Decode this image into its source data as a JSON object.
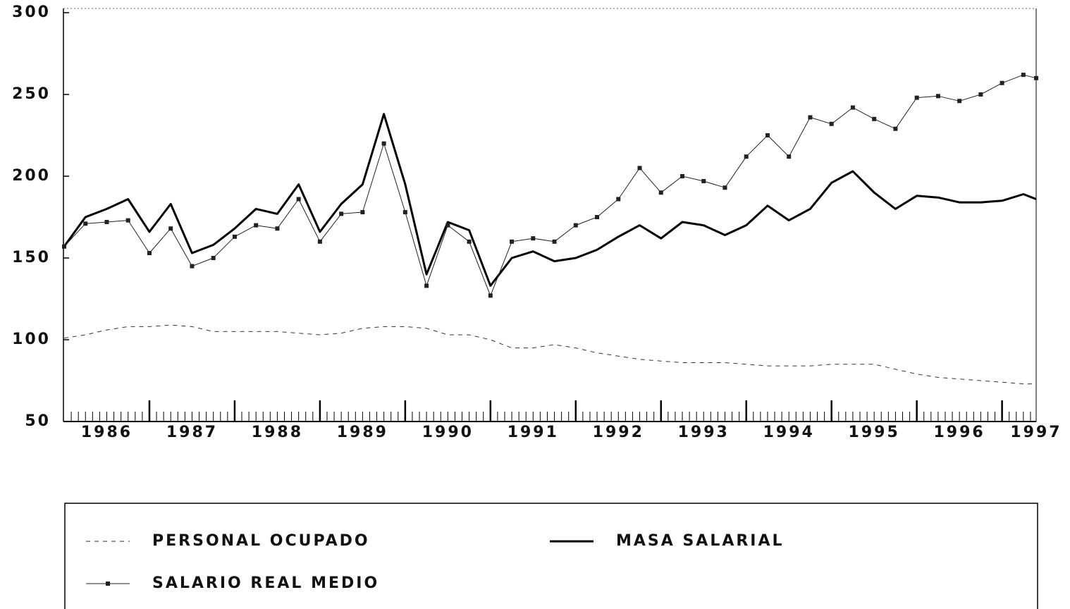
{
  "chart_data": {
    "type": "line",
    "xlim": [
      1986,
      1997.4
    ],
    "xticks": [
      {
        "value": 1986.5,
        "label": "1986"
      },
      {
        "value": 1987.5,
        "label": "1987"
      },
      {
        "value": 1988.5,
        "label": "1988"
      },
      {
        "value": 1989.5,
        "label": "1989"
      },
      {
        "value": 1990.5,
        "label": "1990"
      },
      {
        "value": 1991.5,
        "label": "1991"
      },
      {
        "value": 1992.5,
        "label": "1992"
      },
      {
        "value": 1993.5,
        "label": "1993"
      },
      {
        "value": 1994.5,
        "label": "1994"
      },
      {
        "value": 1995.5,
        "label": "1995"
      },
      {
        "value": 1996.5,
        "label": "1996"
      },
      {
        "value": 1997.4,
        "label": "1997"
      }
    ],
    "year_ticks": [
      1987,
      1988,
      1989,
      1990,
      1991,
      1992,
      1993,
      1994,
      1995,
      1996,
      1997
    ],
    "ylim": [
      50,
      300
    ],
    "yticks": [
      50,
      100,
      150,
      200,
      250,
      300
    ],
    "legend": "bottom",
    "x": [
      1986,
      1986.25,
      1986.5,
      1986.75,
      1987,
      1987.25,
      1987.5,
      1987.75,
      1988,
      1988.25,
      1988.5,
      1988.75,
      1989,
      1989.25,
      1989.5,
      1989.75,
      1990,
      1990.25,
      1990.5,
      1990.75,
      1991,
      1991.25,
      1991.5,
      1991.75,
      1992,
      1992.25,
      1992.5,
      1992.75,
      1993,
      1993.25,
      1993.5,
      1993.75,
      1994,
      1994.25,
      1994.5,
      1994.75,
      1995,
      1995.25,
      1995.5,
      1995.75,
      1996,
      1996.25,
      1996.5,
      1996.75,
      1997,
      1997.25,
      1997.4
    ],
    "series": [
      {
        "name": "PERSONAL OCUPADO",
        "color": "#333333",
        "style": "dashed",
        "width": 1,
        "values": [
          101,
          103,
          106,
          108,
          108,
          109,
          108,
          105,
          105,
          105,
          105,
          104,
          103,
          104,
          107,
          108,
          108,
          107,
          103,
          103,
          100,
          95,
          95,
          97,
          95,
          92,
          90,
          88,
          87,
          86,
          86,
          86,
          85,
          84,
          84,
          84,
          85,
          85,
          85,
          82,
          79,
          77,
          76,
          75,
          74,
          73,
          73
        ]
      },
      {
        "name": "MASA SALARIAL",
        "color": "#000000",
        "style": "solid",
        "width": 3,
        "values": [
          157,
          175,
          180,
          186,
          166,
          183,
          153,
          158,
          168,
          180,
          177,
          195,
          166,
          183,
          195,
          238,
          195,
          140,
          172,
          167,
          133,
          150,
          154,
          148,
          150,
          155,
          163,
          170,
          162,
          172,
          170,
          164,
          170,
          182,
          173,
          180,
          196,
          203,
          190,
          180,
          188,
          187,
          184,
          184,
          185,
          189,
          186
        ]
      },
      {
        "name": "SALARIO REAL MEDIO",
        "color": "#222222",
        "style": "markers",
        "width": 1,
        "values": [
          157,
          171,
          172,
          173,
          153,
          168,
          145,
          150,
          163,
          170,
          168,
          186,
          160,
          177,
          178,
          220,
          178,
          133,
          170,
          160,
          127,
          160,
          162,
          160,
          170,
          175,
          186,
          205,
          190,
          200,
          197,
          193,
          212,
          225,
          212,
          236,
          232,
          242,
          235,
          229,
          248,
          249,
          246,
          250,
          257,
          262,
          260
        ]
      }
    ]
  }
}
